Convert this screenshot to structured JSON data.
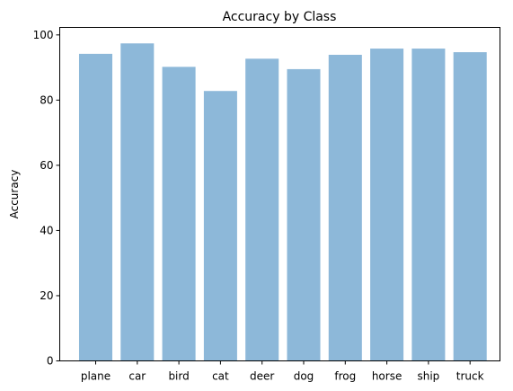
{
  "chart_data": {
    "type": "bar",
    "title": "Accuracy by Class",
    "xlabel": "",
    "ylabel": "Accuracy",
    "categories": [
      "plane",
      "car",
      "bird",
      "cat",
      "deer",
      "dog",
      "frog",
      "horse",
      "ship",
      "truck"
    ],
    "values": [
      94.2,
      97.4,
      90.2,
      82.8,
      92.7,
      89.5,
      93.9,
      95.8,
      95.8,
      94.7
    ],
    "ylim": [
      0,
      102.3
    ],
    "yticks": [
      0,
      20,
      40,
      60,
      80,
      100
    ],
    "bar_color": "#8db8d9",
    "grid": false,
    "legend": "none"
  }
}
